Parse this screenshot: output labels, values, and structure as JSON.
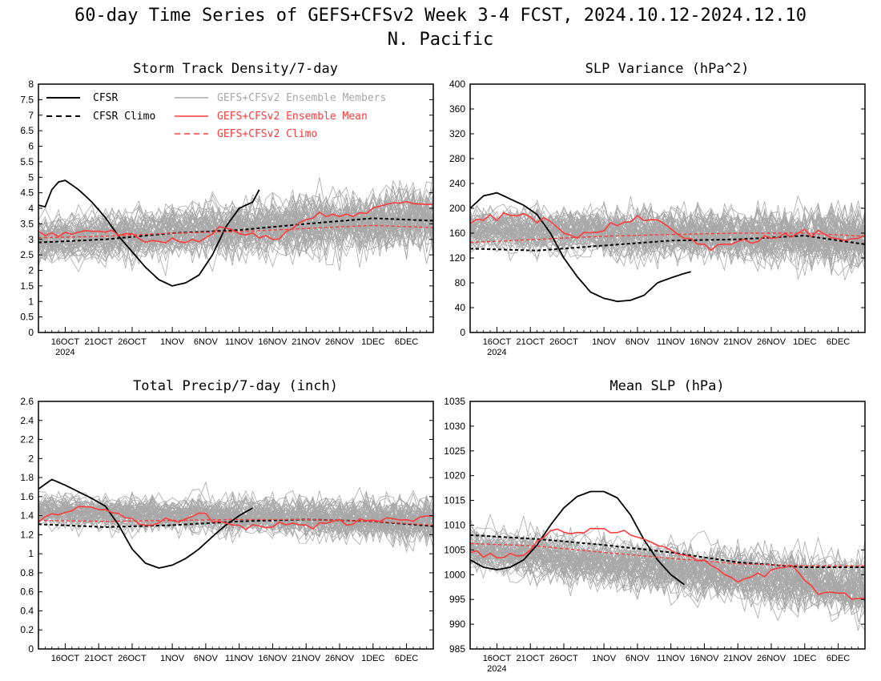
{
  "figure": {
    "title": "60-day Time Series of GEFS+CFSv2 Week 3-4 FCST, 2024.10.12-2024.12.10",
    "subtitle": "N. Pacific"
  },
  "legend": {
    "cfsr": "CFSR",
    "cfsr_climo": "CFSR Climo",
    "members": "GEFS+CFSv2 Ensemble Members",
    "ens_mean": "GEFS+CFSv2 Ensemble Mean",
    "gefs_climo": "GEFS+CFSv2 Climo"
  },
  "colors": {
    "members": "#a8a8a8",
    "cfsr": "#000000",
    "ens_mean": "#ff3b3b",
    "gefs_climo": "#ff3b3b"
  },
  "x_tick_labels": [
    "16OCT",
    "21OCT",
    "26OCT",
    "1NOV",
    "6NOV",
    "11NOV",
    "16NOV",
    "21NOV",
    "26NOV",
    "1DEC",
    "6DEC"
  ],
  "x_year_label": "2024",
  "chart_data": [
    {
      "type": "line",
      "title": "Storm Track Density/7-day",
      "xlim": [
        "2024-10-12",
        "2024-12-10"
      ],
      "ylim": [
        0,
        8
      ],
      "yticks": [
        "0",
        "0.5",
        "1",
        "1.5",
        "2",
        "2.5",
        "3",
        "3.5",
        "4",
        "4.5",
        "5",
        "5.5",
        "6",
        "6.5",
        "7",
        "7.5",
        "8"
      ],
      "members": {
        "count": 60,
        "center_start": 3.0,
        "center_end": 3.7,
        "spread": 0.95
      },
      "series": [
        {
          "name": "CFSR",
          "x": [
            "2024-10-12",
            "2024-10-13",
            "2024-10-14",
            "2024-10-15",
            "2024-10-16",
            "2024-10-18",
            "2024-10-20",
            "2024-10-22",
            "2024-10-24",
            "2024-10-26",
            "2024-10-28",
            "2024-10-30",
            "2024-11-01",
            "2024-11-03",
            "2024-11-05",
            "2024-11-07",
            "2024-11-09",
            "2024-11-11",
            "2024-11-13",
            "2024-11-14"
          ],
          "values": [
            4.1,
            4.05,
            4.6,
            4.85,
            4.9,
            4.6,
            4.2,
            3.7,
            3.1,
            2.6,
            2.1,
            1.7,
            1.5,
            1.6,
            1.85,
            2.5,
            3.4,
            4.0,
            4.2,
            4.6
          ]
        },
        {
          "name": "CFSR Climo",
          "x": [
            "2024-10-12",
            "2024-10-22",
            "2024-11-01",
            "2024-11-11",
            "2024-11-21",
            "2024-12-01",
            "2024-12-10"
          ],
          "values": [
            2.9,
            3.0,
            3.2,
            3.3,
            3.5,
            3.68,
            3.6
          ]
        },
        {
          "name": "GEFS+CFSv2 Ensemble Mean",
          "x": [
            "2024-10-12",
            "2024-10-16",
            "2024-10-20",
            "2024-10-24",
            "2024-10-28",
            "2024-11-01",
            "2024-11-05",
            "2024-11-09",
            "2024-11-13",
            "2024-11-17",
            "2024-11-21",
            "2024-11-25",
            "2024-11-29",
            "2024-12-03",
            "2024-12-07",
            "2024-12-10"
          ],
          "values": [
            3.1,
            3.2,
            3.25,
            3.3,
            3.0,
            2.9,
            3.0,
            3.4,
            3.2,
            3.0,
            3.7,
            3.8,
            3.8,
            4.1,
            4.2,
            4.1
          ]
        },
        {
          "name": "GEFS+CFSv2 Climo",
          "x": [
            "2024-10-12",
            "2024-10-22",
            "2024-11-01",
            "2024-11-11",
            "2024-11-21",
            "2024-12-01",
            "2024-12-10"
          ],
          "values": [
            3.05,
            3.1,
            3.2,
            3.25,
            3.35,
            3.45,
            3.38
          ]
        }
      ]
    },
    {
      "type": "line",
      "title": "SLP Variance (hPa^2)",
      "xlim": [
        "2024-10-12",
        "2024-12-10"
      ],
      "ylim": [
        0,
        400
      ],
      "yticks": [
        "0",
        "40",
        "80",
        "120",
        "160",
        "200",
        "240",
        "280",
        "320",
        "360",
        "400"
      ],
      "members": {
        "count": 60,
        "center_start": 165,
        "center_end": 150,
        "spread": 45
      },
      "series": [
        {
          "name": "CFSR",
          "x": [
            "2024-10-12",
            "2024-10-14",
            "2024-10-16",
            "2024-10-18",
            "2024-10-20",
            "2024-10-22",
            "2024-10-24",
            "2024-10-26",
            "2024-10-28",
            "2024-10-30",
            "2024-11-01",
            "2024-11-03",
            "2024-11-05",
            "2024-11-07",
            "2024-11-09",
            "2024-11-11",
            "2024-11-13",
            "2024-11-14"
          ],
          "values": [
            200,
            220,
            225,
            215,
            205,
            190,
            160,
            120,
            90,
            65,
            55,
            50,
            52,
            60,
            80,
            88,
            95,
            98
          ]
        },
        {
          "name": "CFSR Climo",
          "x": [
            "2024-10-12",
            "2024-10-22",
            "2024-11-01",
            "2024-11-11",
            "2024-11-21",
            "2024-12-01",
            "2024-12-10"
          ],
          "values": [
            135,
            132,
            140,
            148,
            150,
            156,
            142
          ]
        },
        {
          "name": "GEFS+CFSv2 Ensemble Mean",
          "x": [
            "2024-10-12",
            "2024-10-16",
            "2024-10-20",
            "2024-10-24",
            "2024-10-28",
            "2024-11-01",
            "2024-11-05",
            "2024-11-09",
            "2024-11-13",
            "2024-11-17",
            "2024-11-21",
            "2024-11-25",
            "2024-11-29",
            "2024-12-03",
            "2024-12-07",
            "2024-12-10"
          ],
          "values": [
            175,
            185,
            195,
            175,
            150,
            170,
            180,
            185,
            150,
            135,
            145,
            150,
            160,
            160,
            150,
            155
          ]
        },
        {
          "name": "GEFS+CFSv2 Climo",
          "x": [
            "2024-10-12",
            "2024-10-22",
            "2024-11-01",
            "2024-11-11",
            "2024-11-21",
            "2024-12-01",
            "2024-12-10"
          ],
          "values": [
            145,
            150,
            155,
            158,
            160,
            160,
            155
          ]
        }
      ]
    },
    {
      "type": "line",
      "title": "Total Precip/7-day (inch)",
      "xlim": [
        "2024-10-12",
        "2024-12-10"
      ],
      "ylim": [
        0,
        2.6
      ],
      "yticks": [
        "0",
        "0.2",
        "0.4",
        "0.6",
        "0.8",
        "1",
        "1.2",
        "1.4",
        "1.6",
        "1.8",
        "2",
        "2.2",
        "2.4",
        "2.6"
      ],
      "members": {
        "count": 60,
        "center_start": 1.45,
        "center_end": 1.35,
        "spread": 0.22
      },
      "series": [
        {
          "name": "CFSR",
          "x": [
            "2024-10-12",
            "2024-10-14",
            "2024-10-16",
            "2024-10-18",
            "2024-10-20",
            "2024-10-22",
            "2024-10-24",
            "2024-10-26",
            "2024-10-28",
            "2024-10-30",
            "2024-11-01",
            "2024-11-03",
            "2024-11-05",
            "2024-11-07",
            "2024-11-09",
            "2024-11-11",
            "2024-11-13"
          ],
          "values": [
            1.68,
            1.78,
            1.72,
            1.65,
            1.58,
            1.5,
            1.3,
            1.05,
            0.9,
            0.85,
            0.88,
            0.95,
            1.05,
            1.18,
            1.3,
            1.4,
            1.48
          ]
        },
        {
          "name": "CFSR Climo",
          "x": [
            "2024-10-12",
            "2024-10-22",
            "2024-11-01",
            "2024-11-11",
            "2024-11-21",
            "2024-12-01",
            "2024-12-10"
          ],
          "values": [
            1.31,
            1.28,
            1.3,
            1.34,
            1.36,
            1.34,
            1.29
          ]
        },
        {
          "name": "GEFS+CFSv2 Ensemble Mean",
          "x": [
            "2024-10-12",
            "2024-10-16",
            "2024-10-20",
            "2024-10-24",
            "2024-10-28",
            "2024-11-01",
            "2024-11-05",
            "2024-11-09",
            "2024-11-13",
            "2024-11-17",
            "2024-11-21",
            "2024-11-25",
            "2024-11-29",
            "2024-12-03",
            "2024-12-07",
            "2024-12-10"
          ],
          "values": [
            1.35,
            1.45,
            1.5,
            1.42,
            1.3,
            1.35,
            1.42,
            1.3,
            1.25,
            1.3,
            1.3,
            1.32,
            1.35,
            1.35,
            1.33,
            1.38
          ]
        },
        {
          "name": "GEFS+CFSv2 Climo",
          "x": [
            "2024-10-12",
            "2024-10-22",
            "2024-11-01",
            "2024-11-11",
            "2024-11-21",
            "2024-12-01",
            "2024-12-10"
          ],
          "values": [
            1.35,
            1.34,
            1.35,
            1.36,
            1.36,
            1.34,
            1.3
          ]
        }
      ]
    },
    {
      "type": "line",
      "title": "Mean SLP (hPa)",
      "xlim": [
        "2024-10-12",
        "2024-12-10"
      ],
      "ylim": [
        985,
        1035
      ],
      "yticks": [
        "985",
        "990",
        "995",
        "1000",
        "1005",
        "1010",
        "1015",
        "1020",
        "1025",
        "1030",
        "1035"
      ],
      "members": {
        "count": 60,
        "center_start": 1005,
        "center_end": 997,
        "spread": 5.5
      },
      "series": [
        {
          "name": "CFSR",
          "x": [
            "2024-10-12",
            "2024-10-14",
            "2024-10-16",
            "2024-10-18",
            "2024-10-20",
            "2024-10-22",
            "2024-10-24",
            "2024-10-26",
            "2024-10-28",
            "2024-10-30",
            "2024-11-01",
            "2024-11-03",
            "2024-11-05",
            "2024-11-07",
            "2024-11-09",
            "2024-11-11",
            "2024-11-13"
          ],
          "values": [
            1003,
            1001.5,
            1001,
            1001.5,
            1003,
            1006,
            1010,
            1013.5,
            1015.8,
            1016.8,
            1016.8,
            1015.5,
            1012,
            1007,
            1003,
            1000,
            998
          ]
        },
        {
          "name": "CFSR Climo",
          "x": [
            "2024-10-12",
            "2024-10-22",
            "2024-11-01",
            "2024-11-11",
            "2024-11-21",
            "2024-12-01",
            "2024-12-10"
          ],
          "values": [
            1008,
            1007.2,
            1006,
            1004.5,
            1002.5,
            1001.5,
            1001.5
          ]
        },
        {
          "name": "GEFS+CFSv2 Ensemble Mean",
          "x": [
            "2024-10-12",
            "2024-10-16",
            "2024-10-20",
            "2024-10-24",
            "2024-10-28",
            "2024-11-01",
            "2024-11-05",
            "2024-11-09",
            "2024-11-13",
            "2024-11-17",
            "2024-11-21",
            "2024-11-25",
            "2024-11-29",
            "2024-12-03",
            "2024-12-07",
            "2024-12-10"
          ],
          "values": [
            1005,
            1004,
            1004,
            1009,
            1008.5,
            1009,
            1008,
            1006,
            1004,
            1002,
            999,
            1000,
            1002,
            996,
            996,
            995
          ]
        },
        {
          "name": "GEFS+CFSv2 Climo",
          "x": [
            "2024-10-12",
            "2024-10-22",
            "2024-11-01",
            "2024-11-11",
            "2024-11-21",
            "2024-12-01",
            "2024-12-10"
          ],
          "values": [
            1006.3,
            1005.8,
            1004.5,
            1003.3,
            1002.2,
            1001.8,
            1001.8
          ]
        }
      ]
    }
  ]
}
